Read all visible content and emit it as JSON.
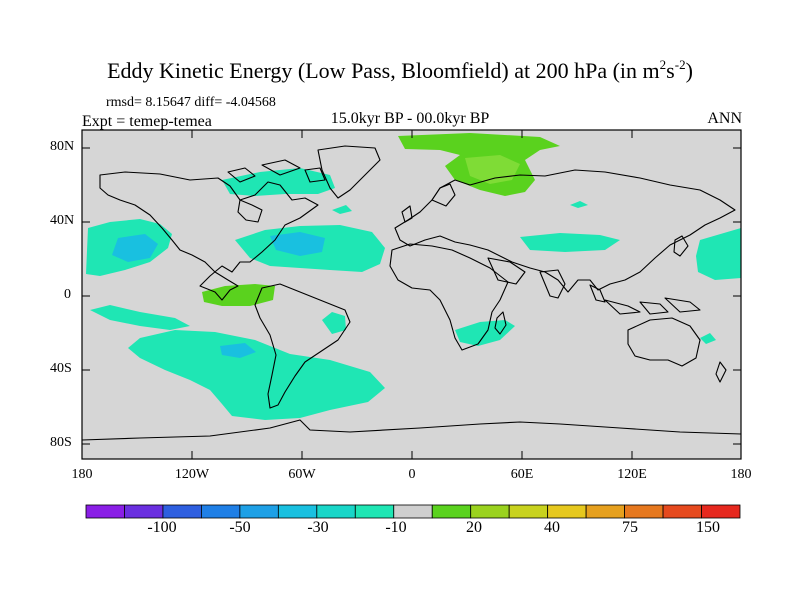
{
  "title": {
    "text": "Eddy Kinetic Energy (Low Pass, Bloomfield) at 200 hPa (in m",
    "sup1": "2",
    "mid": "s",
    "sup2": "-2",
    "end": ")"
  },
  "stats": "rmsd= 8.15647 diff= -4.04568",
  "experiment": "Expt = temep-temea",
  "period": "15.0kyr BP - 00.0kyr BP",
  "season": "ANN",
  "lat_ticks": [
    "80N",
    "40N",
    "0",
    "40S",
    "80S"
  ],
  "lon_ticks": [
    "180",
    "120W",
    "60W",
    "0",
    "60E",
    "120E",
    "180"
  ],
  "colorbar": {
    "colors": [
      "#8a1ee6",
      "#6a2fe0",
      "#2e5fe0",
      "#1f7fe6",
      "#1ea0e6",
      "#19c0e0",
      "#19d6c8",
      "#1fe6b4",
      "#cfcfcf",
      "#5ad21e",
      "#9ad21e",
      "#c8d21e",
      "#e6c81e",
      "#e6a01e",
      "#e6781e",
      "#e64a1e",
      "#e6281e"
    ],
    "labels": [
      "-100",
      "-50",
      "-30",
      "-10",
      "20",
      "40",
      "75",
      "150"
    ]
  },
  "map_colors": {
    "background": "#d6d6d6",
    "negative_fill": "#1fe6b4",
    "negative_core": "#19c0e0",
    "positive_fill": "#5ad21e",
    "coast": "#000000"
  }
}
